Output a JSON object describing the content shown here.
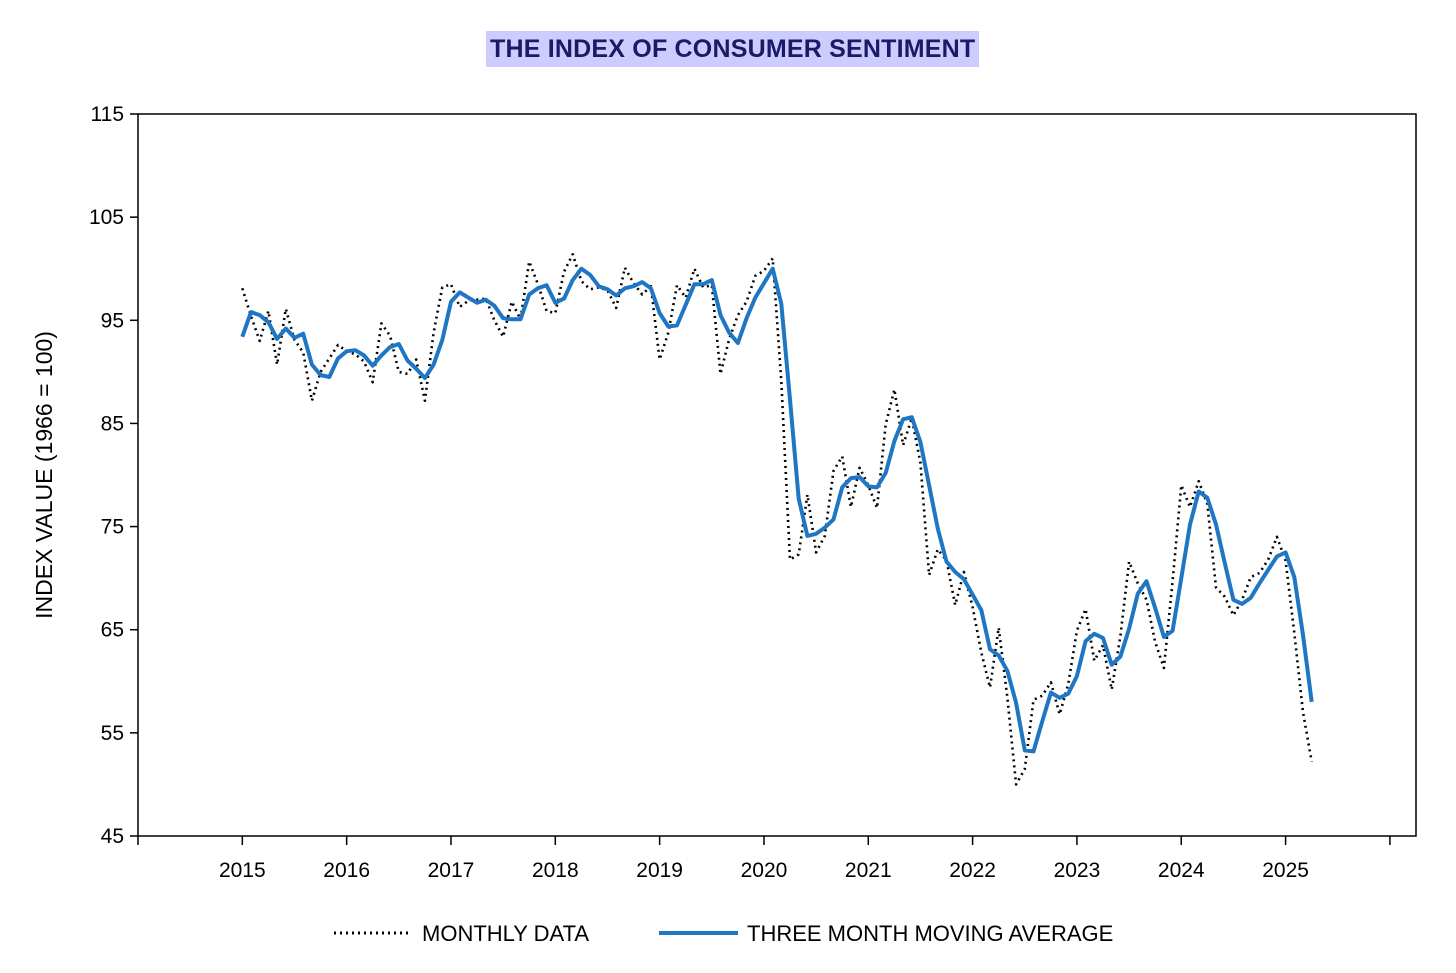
{
  "chart_data": {
    "type": "line",
    "title": "THE INDEX OF CONSUMER SENTIMENT",
    "xlabel": "",
    "ylabel": "INDEX VALUE (1966 = 100)",
    "ylim": [
      45,
      115
    ],
    "y_ticks": [
      45,
      55,
      65,
      75,
      85,
      95,
      105,
      115
    ],
    "xlim": [
      2014,
      2026.25
    ],
    "x_ticks": [
      "2015",
      "2016",
      "2017",
      "2018",
      "2019",
      "2020",
      "2021",
      "2022",
      "2023",
      "2024",
      "2025"
    ],
    "grid": false,
    "legend_position": "bottom-center",
    "colors": {
      "monthly": "#000000",
      "moving_average": "#1f77c4",
      "title_background": "#ccccff",
      "title_text": "#1a1a66"
    },
    "series": [
      {
        "name": "MONTHLY DATA",
        "style": "dotted",
        "x": [
          "2015-01",
          "2015-02",
          "2015-03",
          "2015-04",
          "2015-05",
          "2015-06",
          "2015-07",
          "2015-08",
          "2015-09",
          "2015-10",
          "2015-11",
          "2015-12",
          "2016-01",
          "2016-02",
          "2016-03",
          "2016-04",
          "2016-05",
          "2016-06",
          "2016-07",
          "2016-08",
          "2016-09",
          "2016-10",
          "2016-11",
          "2016-12",
          "2017-01",
          "2017-02",
          "2017-03",
          "2017-04",
          "2017-05",
          "2017-06",
          "2017-07",
          "2017-08",
          "2017-09",
          "2017-10",
          "2017-11",
          "2017-12",
          "2018-01",
          "2018-02",
          "2018-03",
          "2018-04",
          "2018-05",
          "2018-06",
          "2018-07",
          "2018-08",
          "2018-09",
          "2018-10",
          "2018-11",
          "2018-12",
          "2019-01",
          "2019-02",
          "2019-03",
          "2019-04",
          "2019-05",
          "2019-06",
          "2019-07",
          "2019-08",
          "2019-09",
          "2019-10",
          "2019-11",
          "2019-12",
          "2020-01",
          "2020-02",
          "2020-03",
          "2020-04",
          "2020-05",
          "2020-06",
          "2020-07",
          "2020-08",
          "2020-09",
          "2020-10",
          "2020-11",
          "2020-12",
          "2021-01",
          "2021-02",
          "2021-03",
          "2021-04",
          "2021-05",
          "2021-06",
          "2021-07",
          "2021-08",
          "2021-09",
          "2021-10",
          "2021-11",
          "2021-12",
          "2022-01",
          "2022-02",
          "2022-03",
          "2022-04",
          "2022-05",
          "2022-06",
          "2022-07",
          "2022-08",
          "2022-09",
          "2022-10",
          "2022-11",
          "2022-12",
          "2023-01",
          "2023-02",
          "2023-03",
          "2023-04",
          "2023-05",
          "2023-06",
          "2023-07",
          "2023-08",
          "2023-09",
          "2023-10",
          "2023-11",
          "2023-12",
          "2024-01",
          "2024-02",
          "2024-03",
          "2024-04",
          "2024-05",
          "2024-06",
          "2024-07",
          "2024-08",
          "2024-09",
          "2024-10",
          "2024-11",
          "2024-12",
          "2025-01",
          "2025-02",
          "2025-03",
          "2025-04"
        ],
        "values": [
          98.1,
          95.4,
          93.0,
          95.9,
          90.7,
          96.1,
          93.1,
          91.9,
          87.2,
          90.0,
          91.3,
          92.6,
          92.0,
          91.7,
          91.0,
          89.0,
          94.7,
          93.5,
          90.0,
          89.8,
          91.2,
          87.2,
          93.8,
          98.2,
          98.5,
          96.3,
          96.9,
          97.0,
          97.1,
          95.0,
          93.4,
          96.8,
          95.1,
          100.7,
          98.5,
          95.9,
          95.7,
          99.7,
          101.4,
          98.8,
          98.0,
          98.2,
          97.9,
          96.2,
          100.1,
          98.6,
          97.5,
          98.3,
          91.2,
          93.8,
          98.4,
          97.2,
          100.0,
          98.2,
          98.4,
          89.8,
          93.2,
          95.5,
          96.8,
          99.3,
          99.8,
          101.0,
          89.1,
          71.8,
          72.3,
          78.1,
          72.5,
          74.1,
          80.4,
          81.8,
          76.9,
          80.7,
          79.0,
          76.8,
          84.9,
          88.3,
          82.9,
          85.5,
          81.2,
          70.3,
          72.8,
          71.7,
          67.4,
          70.6,
          67.2,
          62.8,
          59.4,
          65.2,
          58.4,
          50.0,
          51.5,
          58.2,
          58.6,
          59.9,
          56.8,
          59.7,
          64.9,
          67.0,
          62.0,
          63.5,
          59.2,
          64.4,
          71.6,
          69.5,
          67.9,
          63.8,
          61.3,
          69.7,
          79.0,
          76.9,
          79.4,
          77.2,
          69.1,
          68.2,
          66.4,
          67.9,
          70.1,
          70.5,
          71.8,
          74.0,
          71.7,
          64.7,
          57.0,
          52.2
        ]
      },
      {
        "name": "THREE MONTH MOVING AVERAGE",
        "style": "solid",
        "x": [
          "2015-01",
          "2015-02",
          "2015-03",
          "2015-04",
          "2015-05",
          "2015-06",
          "2015-07",
          "2015-08",
          "2015-09",
          "2015-10",
          "2015-11",
          "2015-12",
          "2016-01",
          "2016-02",
          "2016-03",
          "2016-04",
          "2016-05",
          "2016-06",
          "2016-07",
          "2016-08",
          "2016-09",
          "2016-10",
          "2016-11",
          "2016-12",
          "2017-01",
          "2017-02",
          "2017-03",
          "2017-04",
          "2017-05",
          "2017-06",
          "2017-07",
          "2017-08",
          "2017-09",
          "2017-10",
          "2017-11",
          "2017-12",
          "2018-01",
          "2018-02",
          "2018-03",
          "2018-04",
          "2018-05",
          "2018-06",
          "2018-07",
          "2018-08",
          "2018-09",
          "2018-10",
          "2018-11",
          "2018-12",
          "2019-01",
          "2019-02",
          "2019-03",
          "2019-04",
          "2019-05",
          "2019-06",
          "2019-07",
          "2019-08",
          "2019-09",
          "2019-10",
          "2019-11",
          "2019-12",
          "2020-01",
          "2020-02",
          "2020-03",
          "2020-04",
          "2020-05",
          "2020-06",
          "2020-07",
          "2020-08",
          "2020-09",
          "2020-10",
          "2020-11",
          "2020-12",
          "2021-01",
          "2021-02",
          "2021-03",
          "2021-04",
          "2021-05",
          "2021-06",
          "2021-07",
          "2021-08",
          "2021-09",
          "2021-10",
          "2021-11",
          "2021-12",
          "2022-01",
          "2022-02",
          "2022-03",
          "2022-04",
          "2022-05",
          "2022-06",
          "2022-07",
          "2022-08",
          "2022-09",
          "2022-10",
          "2022-11",
          "2022-12",
          "2023-01",
          "2023-02",
          "2023-03",
          "2023-04",
          "2023-05",
          "2023-06",
          "2023-07",
          "2023-08",
          "2023-09",
          "2023-10",
          "2023-11",
          "2023-12",
          "2024-01",
          "2024-02",
          "2024-03",
          "2024-04",
          "2024-05",
          "2024-06",
          "2024-07",
          "2024-08",
          "2024-09",
          "2024-10",
          "2024-11",
          "2024-12",
          "2025-01",
          "2025-02",
          "2025-03",
          "2025-04"
        ],
        "values": [
          93.4,
          95.8,
          95.5,
          94.8,
          93.2,
          94.2,
          93.3,
          93.7,
          90.7,
          89.7,
          89.5,
          91.3,
          92.0,
          92.1,
          91.6,
          90.6,
          91.6,
          92.4,
          92.7,
          91.1,
          90.3,
          89.4,
          90.7,
          93.1,
          96.8,
          97.7,
          97.2,
          96.7,
          97.0,
          96.4,
          95.2,
          95.1,
          95.1,
          97.5,
          98.1,
          98.4,
          96.7,
          97.1,
          98.9,
          100.0,
          99.4,
          98.3,
          98.0,
          97.4,
          98.1,
          98.3,
          98.7,
          98.1,
          95.7,
          94.4,
          94.5,
          96.5,
          98.5,
          98.5,
          98.9,
          95.5,
          93.8,
          92.8,
          95.2,
          97.2,
          98.6,
          100.0,
          96.6,
          87.3,
          77.7,
          74.1,
          74.3,
          74.9,
          75.7,
          78.8,
          79.7,
          79.8,
          78.9,
          78.8,
          80.2,
          83.3,
          85.4,
          85.6,
          83.2,
          79.0,
          74.8,
          71.6,
          70.6,
          69.9,
          68.4,
          66.9,
          63.1,
          62.5,
          61.0,
          57.9,
          53.3,
          53.2,
          56.1,
          58.9,
          58.4,
          58.8,
          60.5,
          63.9,
          64.6,
          64.2,
          61.6,
          62.4,
          65.1,
          68.5,
          69.7,
          67.1,
          64.3,
          64.9,
          70.0,
          75.2,
          78.4,
          77.8,
          75.2,
          71.5,
          67.9,
          67.5,
          68.1,
          69.5,
          70.8,
          72.1,
          72.5,
          70.1,
          64.5,
          58.0
        ]
      }
    ]
  }
}
